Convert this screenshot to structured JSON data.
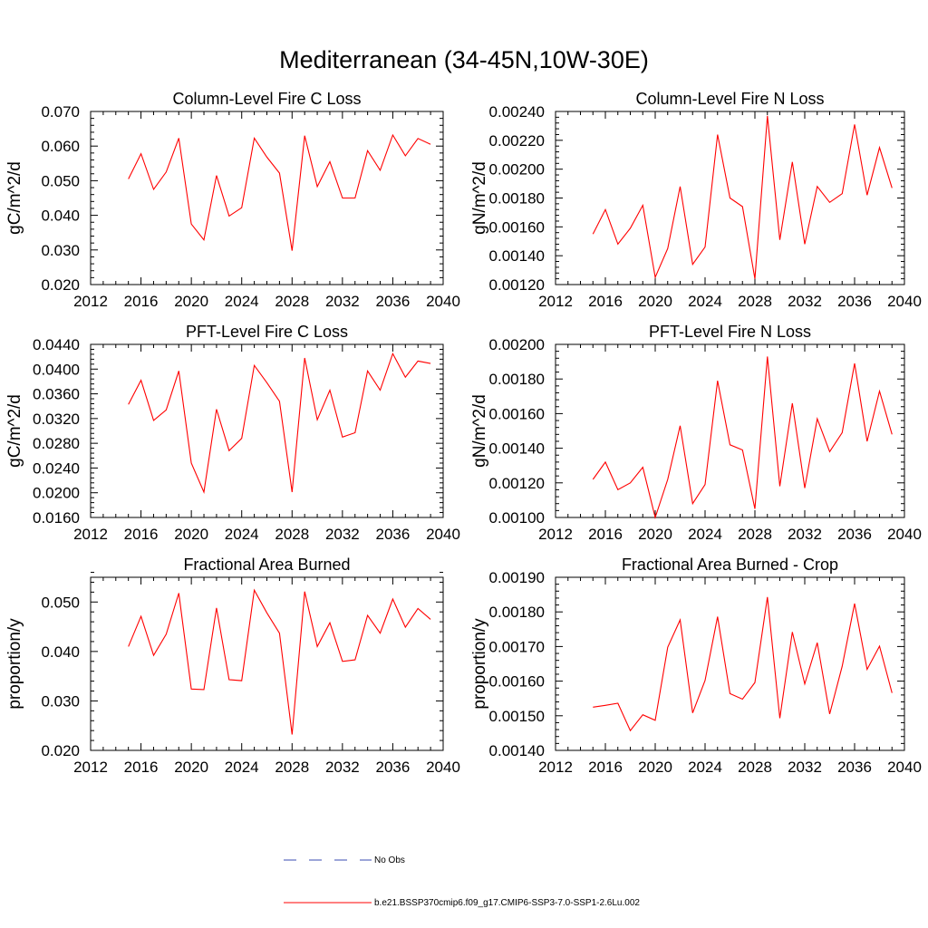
{
  "figure": {
    "title": "Mediterranean (34-45N,10W-30E)"
  },
  "legend": [
    {
      "label": "No Obs",
      "color": "#3a4bb0",
      "dash": true
    },
    {
      "label": "b.e21.BSSP370cmip6.f09_g17.CMIP6-SSP3-7.0-SSP1-2.6Lu.002",
      "color": "#ff0000",
      "dash": false
    }
  ],
  "chart_data": [
    {
      "type": "line",
      "title": "Column-Level Fire C Loss",
      "ylabel": "gC/m^2/d",
      "xlim": [
        2012,
        2040
      ],
      "ylim": [
        0.02,
        0.07
      ],
      "xticks": [
        2012,
        2016,
        2020,
        2024,
        2028,
        2032,
        2036,
        2040
      ],
      "xtick_labels": [
        "2012",
        "2016",
        "2020",
        "2024",
        "2028",
        "2032",
        "2036",
        "2040"
      ],
      "yticks": [
        0.02,
        0.03,
        0.04,
        0.05,
        0.06,
        0.07
      ],
      "ytick_labels": [
        "0.020",
        "0.030",
        "0.040",
        "0.050",
        "0.060",
        "0.070"
      ],
      "grid": false,
      "series": [
        {
          "color": "#ff0000",
          "x": [
            2015,
            2016,
            2017,
            2018,
            2019,
            2020,
            2021,
            2022,
            2023,
            2024,
            2025,
            2026,
            2027,
            2028,
            2029,
            2030,
            2031,
            2032,
            2033,
            2034,
            2035,
            2036,
            2037,
            2038,
            2039
          ],
          "y": [
            0.0505,
            0.0578,
            0.0475,
            0.0525,
            0.0623,
            0.0375,
            0.0329,
            0.0515,
            0.0398,
            0.0422,
            0.0623,
            0.0568,
            0.0522,
            0.0298,
            0.063,
            0.0483,
            0.0555,
            0.045,
            0.045,
            0.0587,
            0.053,
            0.0632,
            0.0572,
            0.0622,
            0.0605
          ]
        }
      ]
    },
    {
      "type": "line",
      "title": "Column-Level Fire N Loss",
      "ylabel": "gN/m^2/d",
      "xlim": [
        2012,
        2040
      ],
      "ylim": [
        0.0012,
        0.0024
      ],
      "xticks": [
        2012,
        2016,
        2020,
        2024,
        2028,
        2032,
        2036,
        2040
      ],
      "xtick_labels": [
        "2012",
        "2016",
        "2020",
        "2024",
        "2028",
        "2032",
        "2036",
        "2040"
      ],
      "yticks": [
        0.0012,
        0.0014,
        0.0016,
        0.0018,
        0.002,
        0.0022,
        0.0024
      ],
      "ytick_labels": [
        "0.00120",
        "0.00140",
        "0.00160",
        "0.00180",
        "0.00200",
        "0.00220",
        "0.00240"
      ],
      "grid": false,
      "series": [
        {
          "color": "#ff0000",
          "x": [
            2015,
            2016,
            2017,
            2018,
            2019,
            2020,
            2021,
            2022,
            2023,
            2024,
            2025,
            2026,
            2027,
            2028,
            2029,
            2030,
            2031,
            2032,
            2033,
            2034,
            2035,
            2036,
            2037,
            2038,
            2039
          ],
          "y": [
            0.00155,
            0.00172,
            0.00148,
            0.00159,
            0.00175,
            0.00125,
            0.00145,
            0.00188,
            0.00134,
            0.00146,
            0.00224,
            0.0018,
            0.00174,
            0.00124,
            0.00237,
            0.00151,
            0.00205,
            0.00148,
            0.00188,
            0.00177,
            0.00183,
            0.00231,
            0.00182,
            0.00215,
            0.00187
          ]
        }
      ]
    },
    {
      "type": "line",
      "title": "PFT-Level Fire C Loss",
      "ylabel": "gC/m^2/d",
      "xlim": [
        2012,
        2040
      ],
      "ylim": [
        0.016,
        0.044
      ],
      "xticks": [
        2012,
        2016,
        2020,
        2024,
        2028,
        2032,
        2036,
        2040
      ],
      "xtick_labels": [
        "2012",
        "2016",
        "2020",
        "2024",
        "2028",
        "2032",
        "2036",
        "2040"
      ],
      "yticks": [
        0.016,
        0.02,
        0.024,
        0.028,
        0.032,
        0.036,
        0.04,
        0.044
      ],
      "ytick_labels": [
        "0.0160",
        "0.0200",
        "0.0240",
        "0.0280",
        "0.0320",
        "0.0360",
        "0.0400",
        "0.0440"
      ],
      "grid": false,
      "series": [
        {
          "color": "#ff0000",
          "x": [
            2015,
            2016,
            2017,
            2018,
            2019,
            2020,
            2021,
            2022,
            2023,
            2024,
            2025,
            2026,
            2027,
            2028,
            2029,
            2030,
            2031,
            2032,
            2033,
            2034,
            2035,
            2036,
            2037,
            2038,
            2039
          ],
          "y": [
            0.0343,
            0.0382,
            0.0317,
            0.0334,
            0.0397,
            0.0248,
            0.0201,
            0.0335,
            0.0268,
            0.0288,
            0.0406,
            0.0378,
            0.0348,
            0.0201,
            0.0418,
            0.0318,
            0.0366,
            0.029,
            0.0297,
            0.0397,
            0.0366,
            0.0425,
            0.0387,
            0.0413,
            0.0409
          ]
        }
      ]
    },
    {
      "type": "line",
      "title": "PFT-Level Fire N Loss",
      "ylabel": "gN/m^2/d",
      "xlim": [
        2012,
        2040
      ],
      "ylim": [
        0.001,
        0.002
      ],
      "xticks": [
        2012,
        2016,
        2020,
        2024,
        2028,
        2032,
        2036,
        2040
      ],
      "xtick_labels": [
        "2012",
        "2016",
        "2020",
        "2024",
        "2028",
        "2032",
        "2036",
        "2040"
      ],
      "yticks": [
        0.001,
        0.0012,
        0.0014,
        0.0016,
        0.0018,
        0.002
      ],
      "ytick_labels": [
        "0.00100",
        "0.00120",
        "0.00140",
        "0.00160",
        "0.00180",
        "0.00200"
      ],
      "grid": false,
      "series": [
        {
          "color": "#ff0000",
          "x": [
            2015,
            2016,
            2017,
            2018,
            2019,
            2020,
            2021,
            2022,
            2023,
            2024,
            2025,
            2026,
            2027,
            2028,
            2029,
            2030,
            2031,
            2032,
            2033,
            2034,
            2035,
            2036,
            2037,
            2038,
            2039
          ],
          "y": [
            0.00122,
            0.00132,
            0.00116,
            0.0012,
            0.00129,
            0.001,
            0.00122,
            0.00153,
            0.00108,
            0.00119,
            0.00179,
            0.00142,
            0.00139,
            0.00105,
            0.00193,
            0.00118,
            0.00166,
            0.00117,
            0.00157,
            0.00138,
            0.00149,
            0.00189,
            0.00144,
            0.00173,
            0.00148
          ]
        }
      ]
    },
    {
      "type": "line",
      "title": "Fractional Area Burned",
      "ylabel": "proportion/y",
      "xlim": [
        2012,
        2040
      ],
      "ylim": [
        0.02,
        0.055
      ],
      "xticks": [
        2012,
        2016,
        2020,
        2024,
        2028,
        2032,
        2036,
        2040
      ],
      "xtick_labels": [
        "2012",
        "2016",
        "2020",
        "2024",
        "2028",
        "2032",
        "2036",
        "2040"
      ],
      "yticks": [
        0.02,
        0.03,
        0.04,
        0.05
      ],
      "ytick_labels": [
        "0.020",
        "0.030",
        "0.040",
        "0.050"
      ],
      "grid": false,
      "series": [
        {
          "color": "#ff0000",
          "x": [
            2015,
            2016,
            2017,
            2018,
            2019,
            2020,
            2021,
            2022,
            2023,
            2024,
            2025,
            2026,
            2027,
            2028,
            2029,
            2030,
            2031,
            2032,
            2033,
            2034,
            2035,
            2036,
            2037,
            2038,
            2039
          ],
          "y": [
            0.041,
            0.0471,
            0.0392,
            0.0435,
            0.0518,
            0.0324,
            0.0323,
            0.0488,
            0.0343,
            0.0341,
            0.0524,
            0.0478,
            0.0437,
            0.0232,
            0.0521,
            0.041,
            0.0458,
            0.038,
            0.0383,
            0.0473,
            0.0437,
            0.0506,
            0.0449,
            0.0487,
            0.0465
          ]
        }
      ]
    },
    {
      "type": "line",
      "title": "Fractional Area Burned - Crop",
      "ylabel": "proportion/y",
      "xlim": [
        2012,
        2040
      ],
      "ylim": [
        0.0014,
        0.0019
      ],
      "xticks": [
        2012,
        2016,
        2020,
        2024,
        2028,
        2032,
        2036,
        2040
      ],
      "xtick_labels": [
        "2012",
        "2016",
        "2020",
        "2024",
        "2028",
        "2032",
        "2036",
        "2040"
      ],
      "yticks": [
        0.0014,
        0.0015,
        0.0016,
        0.0017,
        0.0018,
        0.0019
      ],
      "ytick_labels": [
        "0.00140",
        "0.00150",
        "0.00160",
        "0.00170",
        "0.00180",
        "0.00190"
      ],
      "grid": false,
      "series": [
        {
          "color": "#ff0000",
          "x": [
            2015,
            2016,
            2017,
            2018,
            2019,
            2020,
            2021,
            2022,
            2023,
            2024,
            2025,
            2026,
            2027,
            2028,
            2029,
            2030,
            2031,
            2032,
            2033,
            2034,
            2035,
            2036,
            2037,
            2038,
            2039
          ],
          "y": [
            0.001525,
            0.00153,
            0.001536,
            0.001457,
            0.001503,
            0.001487,
            0.001698,
            0.001777,
            0.001508,
            0.001602,
            0.001786,
            0.001564,
            0.001548,
            0.001596,
            0.001843,
            0.001493,
            0.001742,
            0.001592,
            0.001711,
            0.001505,
            0.001643,
            0.001824,
            0.001634,
            0.001701,
            0.001566
          ]
        }
      ]
    }
  ]
}
